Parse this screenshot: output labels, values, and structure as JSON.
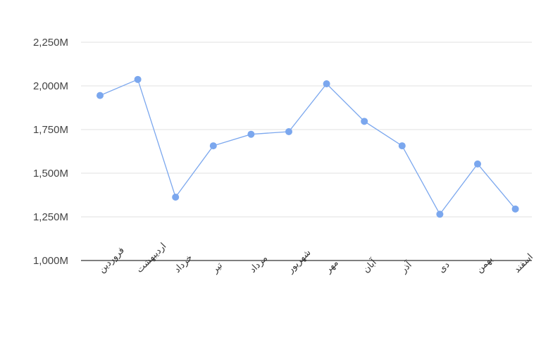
{
  "chart_data": {
    "type": "line",
    "categories": [
      "فروردین",
      "اردیبهشت",
      "خرداد",
      "تیر",
      "مرداد",
      "شهریور",
      "مهر",
      "آبان",
      "آذر",
      "دی",
      "بهمن",
      "اسفند"
    ],
    "series": [
      {
        "values": [
          1945,
          2037,
          1363,
          1657,
          1723,
          1738,
          2012,
          1797,
          1657,
          1265,
          1553,
          1295
        ],
        "color": "#7ba7ee"
      }
    ],
    "unit": "M",
    "ylim": [
      1000,
      2250
    ],
    "yticks": [
      1000,
      1250,
      1500,
      1750,
      2000,
      2250
    ],
    "ytick_labels": [
      "1,000M",
      "1,250M",
      "1,500M",
      "1,750M",
      "2,000M",
      "2,250M"
    ],
    "grid": true,
    "legend": "none"
  }
}
